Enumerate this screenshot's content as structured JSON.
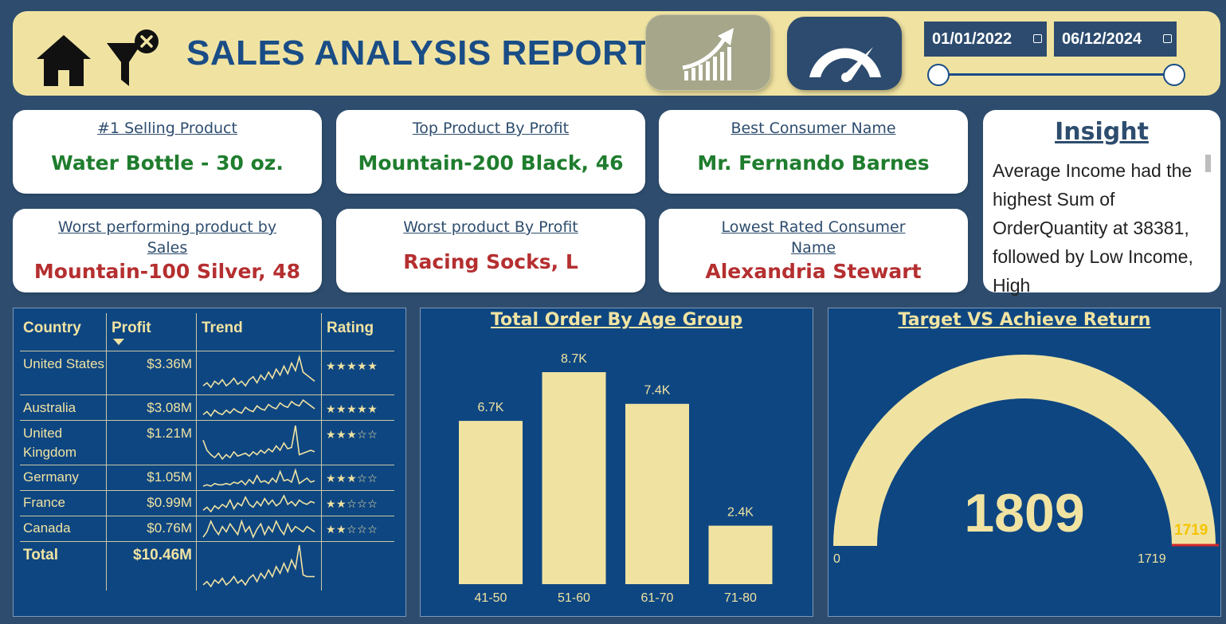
{
  "header": {
    "title": "SALES ANALYSIS REPORT",
    "start_date": "01/01/2022",
    "end_date": "06/12/2024",
    "icons": [
      "home-icon",
      "clear-filter-icon",
      "growth-chart-icon",
      "speedometer-icon",
      "calendar-icon"
    ]
  },
  "cards": {
    "top_selling": {
      "label": "#1 Selling Product",
      "value": "Water Bottle - 30 oz."
    },
    "top_profit": {
      "label": "Top Product By Profit",
      "value": "Mountain-200 Black, 46"
    },
    "best_consumer": {
      "label": "Best Consumer Name",
      "value": "Mr. Fernando Barnes"
    },
    "worst_sales": {
      "label": "Worst performing product by Sales",
      "value": "Mountain-100 Silver, 48"
    },
    "worst_profit": {
      "label": "Worst product By Profit",
      "value": "Racing Socks, L"
    },
    "lowest_consumer": {
      "label": "Lowest Rated Consumer Name",
      "value": "Alexandria Stewart"
    }
  },
  "insight": {
    "title": "Insight",
    "text": "Average Income had the highest Sum of OrderQuantity at 38381, followed by Low Income, High"
  },
  "table": {
    "headers": {
      "country": "Country",
      "profit": "Profit",
      "trend": "Trend",
      "rating": "Rating"
    },
    "rows": [
      {
        "country": "United States",
        "profit": "$3.36M",
        "rating": "★★★★★",
        "trend": [
          5,
          7,
          4,
          8,
          6,
          9,
          5,
          7,
          10,
          6,
          8,
          5,
          9,
          11,
          7,
          12,
          9,
          14,
          10,
          16,
          12,
          18,
          13,
          20,
          15,
          24,
          14,
          12,
          10,
          8
        ]
      },
      {
        "country": "Australia",
        "profit": "$3.08M",
        "rating": "★★★★★",
        "trend": [
          6,
          8,
          5,
          9,
          7,
          6,
          9,
          7,
          10,
          8,
          7,
          11,
          9,
          8,
          12,
          10,
          9,
          13,
          11,
          10,
          14,
          12,
          11,
          15,
          13,
          12,
          16,
          14,
          12,
          10
        ]
      },
      {
        "country": "United Kingdom",
        "profit": "$1.21M",
        "rating": "★★★☆☆",
        "trend": [
          16,
          9,
          6,
          4,
          7,
          3,
          6,
          4,
          8,
          5,
          6,
          7,
          5,
          8,
          6,
          9,
          7,
          10,
          8,
          12,
          9,
          14,
          10,
          11,
          26,
          6,
          7,
          8,
          9,
          8
        ]
      },
      {
        "country": "Germany",
        "profit": "$1.05M",
        "rating": "★★★☆☆",
        "trend": [
          4,
          5,
          4,
          6,
          5,
          5,
          6,
          5,
          7,
          6,
          8,
          5,
          9,
          6,
          12,
          7,
          8,
          6,
          10,
          7,
          15,
          8,
          9,
          7,
          16,
          6,
          8,
          10,
          7,
          8
        ]
      },
      {
        "country": "France",
        "profit": "$0.99M",
        "rating": "★★☆☆☆",
        "trend": [
          5,
          7,
          4,
          8,
          6,
          9,
          7,
          12,
          6,
          10,
          8,
          14,
          9,
          7,
          11,
          8,
          13,
          9,
          12,
          8,
          10,
          15,
          9,
          11,
          8,
          12,
          10,
          9,
          11,
          10
        ]
      },
      {
        "country": "Canada",
        "profit": "$0.76M",
        "rating": "★★☆☆☆",
        "trend": [
          6,
          8,
          12,
          9,
          7,
          10,
          8,
          11,
          9,
          7,
          12,
          8,
          10,
          6,
          9,
          11,
          7,
          10,
          8,
          12,
          9,
          7,
          11,
          8,
          10,
          9,
          8,
          10,
          9,
          8
        ]
      }
    ],
    "total": {
      "label": "Total",
      "profit": "$10.46M",
      "trend": [
        4,
        6,
        3,
        7,
        5,
        8,
        4,
        6,
        9,
        5,
        7,
        4,
        8,
        10,
        6,
        11,
        8,
        13,
        9,
        15,
        11,
        17,
        12,
        19,
        14,
        28,
        10,
        9,
        9,
        9
      ]
    }
  },
  "chart_data": {
    "type": "bar",
    "title": "Total Order By Age Group",
    "categories": [
      "41-50",
      "51-60",
      "61-70",
      "71-80"
    ],
    "values": [
      6700,
      8700,
      7400,
      2400
    ],
    "data_labels": [
      "6.7K",
      "8.7K",
      "7.4K",
      "2.4K"
    ],
    "ylim": [
      0,
      8700
    ],
    "bar_color": "#f0e3a2"
  },
  "gauge": {
    "title": "Target VS Achieve Return",
    "value": "1809",
    "value_num": 1809,
    "min": "0",
    "max": "1719",
    "max_num": 1719,
    "target": "1719",
    "fill_color": "#f0e3a2",
    "target_color": "#d12a2a"
  },
  "colors": {
    "background": "#2e4d6e",
    "panel": "#0e4681",
    "accent": "#f0e3a2",
    "title_blue": "#1a4d86",
    "good": "#1f7d2e",
    "bad": "#b52f30"
  }
}
